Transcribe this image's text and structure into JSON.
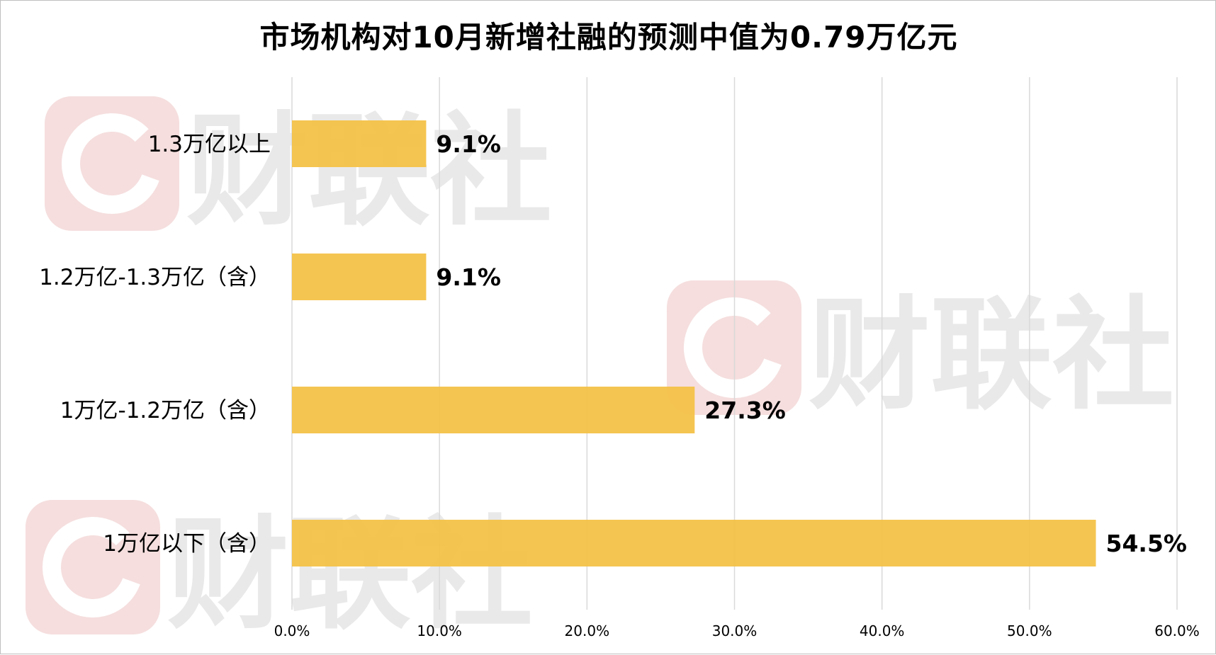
{
  "chart_data": {
    "type": "bar",
    "orientation": "horizontal",
    "title": "市场机构对10月新增社融的预测中值为0.79万亿元",
    "categories": [
      "1.3万亿以上",
      "1.2万亿-1.3万亿（含）",
      "1万亿-1.2万亿（含）",
      "1万亿以下（含）"
    ],
    "values": [
      9.1,
      9.1,
      27.3,
      54.5
    ],
    "data_labels": [
      "9.1%",
      "9.1%",
      "27.3%",
      "54.5%"
    ],
    "x_ticks": [
      "0.0%",
      "10.0%",
      "20.0%",
      "30.0%",
      "40.0%",
      "50.0%",
      "60.0%"
    ],
    "xlim": [
      0,
      60
    ],
    "xlabel": "",
    "ylabel": "",
    "grid": true,
    "legend": "none",
    "bar_color": "#F4C144",
    "grid_color": "#d9d9d9"
  },
  "watermark": {
    "text": "财联社",
    "color": "#e9e9e9",
    "logo_color": "#f6dede"
  }
}
